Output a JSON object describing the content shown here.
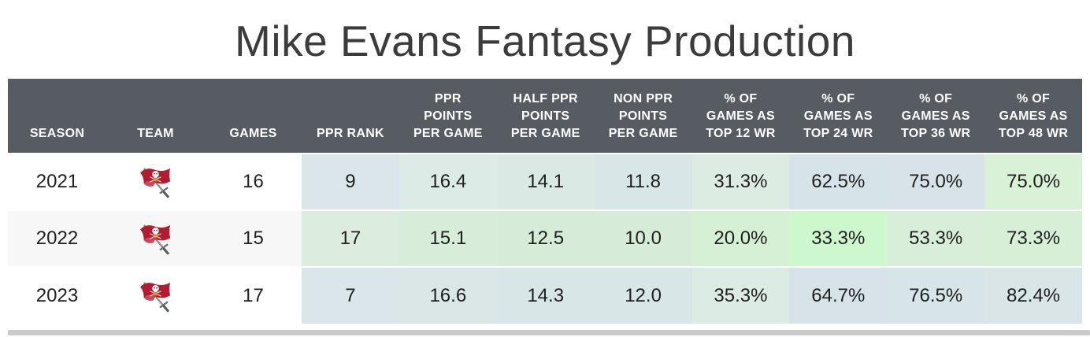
{
  "title": "Mike Evans Fantasy Production",
  "colors": {
    "header_bg": "#575c63",
    "header_text": "#ffffff",
    "row_alt_bg": "#f7f7f7",
    "scrollbar": "#cbcbcb",
    "logo_red": "#b01c30",
    "logo_orange": "#e87722",
    "logo_pewter": "#8e9089"
  },
  "table": {
    "columns": [
      {
        "id": "season",
        "label": "SEASON"
      },
      {
        "id": "team",
        "label": "TEAM"
      },
      {
        "id": "games",
        "label": "GAMES"
      },
      {
        "id": "ppr-rank",
        "label": "PPR RANK"
      },
      {
        "id": "ppr-ppg",
        "label": "PPR\nPOINTS\nPER GAME"
      },
      {
        "id": "half-ppr-ppg",
        "label": "HALF PPR\nPOINTS\nPER GAME"
      },
      {
        "id": "non-ppr-ppg",
        "label": "NON PPR\nPOINTS\nPER GAME"
      },
      {
        "id": "top12",
        "label": "% OF\nGAMES AS\nTOP 12 WR"
      },
      {
        "id": "top24",
        "label": "% OF\nGAMES AS\nTOP 24 WR"
      },
      {
        "id": "top36",
        "label": "% OF\nGAMES AS\nTOP 36 WR"
      },
      {
        "id": "top48",
        "label": "% OF\nGAMES AS\nTOP 48 WR"
      }
    ],
    "rows": [
      {
        "season": "2021",
        "team_icon": "buccaneers-flag-icon",
        "team_name": "Tampa Bay Buccaneers",
        "games": "16",
        "cells": [
          {
            "v": "9",
            "bg": "#dae6e9"
          },
          {
            "v": "16.4",
            "bg": "#dcebe5"
          },
          {
            "v": "14.1",
            "bg": "#dbe9e5"
          },
          {
            "v": "11.8",
            "bg": "#d9e6e8"
          },
          {
            "v": "31.3%",
            "bg": "#dcece3"
          },
          {
            "v": "62.5%",
            "bg": "#d6e3e9"
          },
          {
            "v": "75.0%",
            "bg": "#d7e3e9"
          },
          {
            "v": "75.0%",
            "bg": "#d9f1d7"
          }
        ]
      },
      {
        "season": "2022",
        "team_icon": "buccaneers-flag-icon",
        "team_name": "Tampa Bay Buccaneers",
        "games": "15",
        "cells": [
          {
            "v": "17",
            "bg": "#dcedde"
          },
          {
            "v": "15.1",
            "bg": "#d8edd9"
          },
          {
            "v": "12.5",
            "bg": "#d7ecd8"
          },
          {
            "v": "10.0",
            "bg": "#d7ecd8"
          },
          {
            "v": "20.0%",
            "bg": "#d5f0d5"
          },
          {
            "v": "33.3%",
            "bg": "#cdf7cd"
          },
          {
            "v": "53.3%",
            "bg": "#d8eed8"
          },
          {
            "v": "73.3%",
            "bg": "#d6efd6"
          }
        ]
      },
      {
        "season": "2023",
        "team_icon": "buccaneers-flag-icon",
        "team_name": "Tampa Bay Buccaneers",
        "games": "17",
        "cells": [
          {
            "v": "7",
            "bg": "#dae6e9"
          },
          {
            "v": "16.6",
            "bg": "#dae7e6"
          },
          {
            "v": "14.3",
            "bg": "#d9e6e7"
          },
          {
            "v": "12.0",
            "bg": "#d9e6e7"
          },
          {
            "v": "35.3%",
            "bg": "#dcebe3"
          },
          {
            "v": "64.7%",
            "bg": "#d7e3e8"
          },
          {
            "v": "76.5%",
            "bg": "#d7e4e8"
          },
          {
            "v": "82.4%",
            "bg": "#d9e5e7"
          }
        ]
      }
    ]
  }
}
